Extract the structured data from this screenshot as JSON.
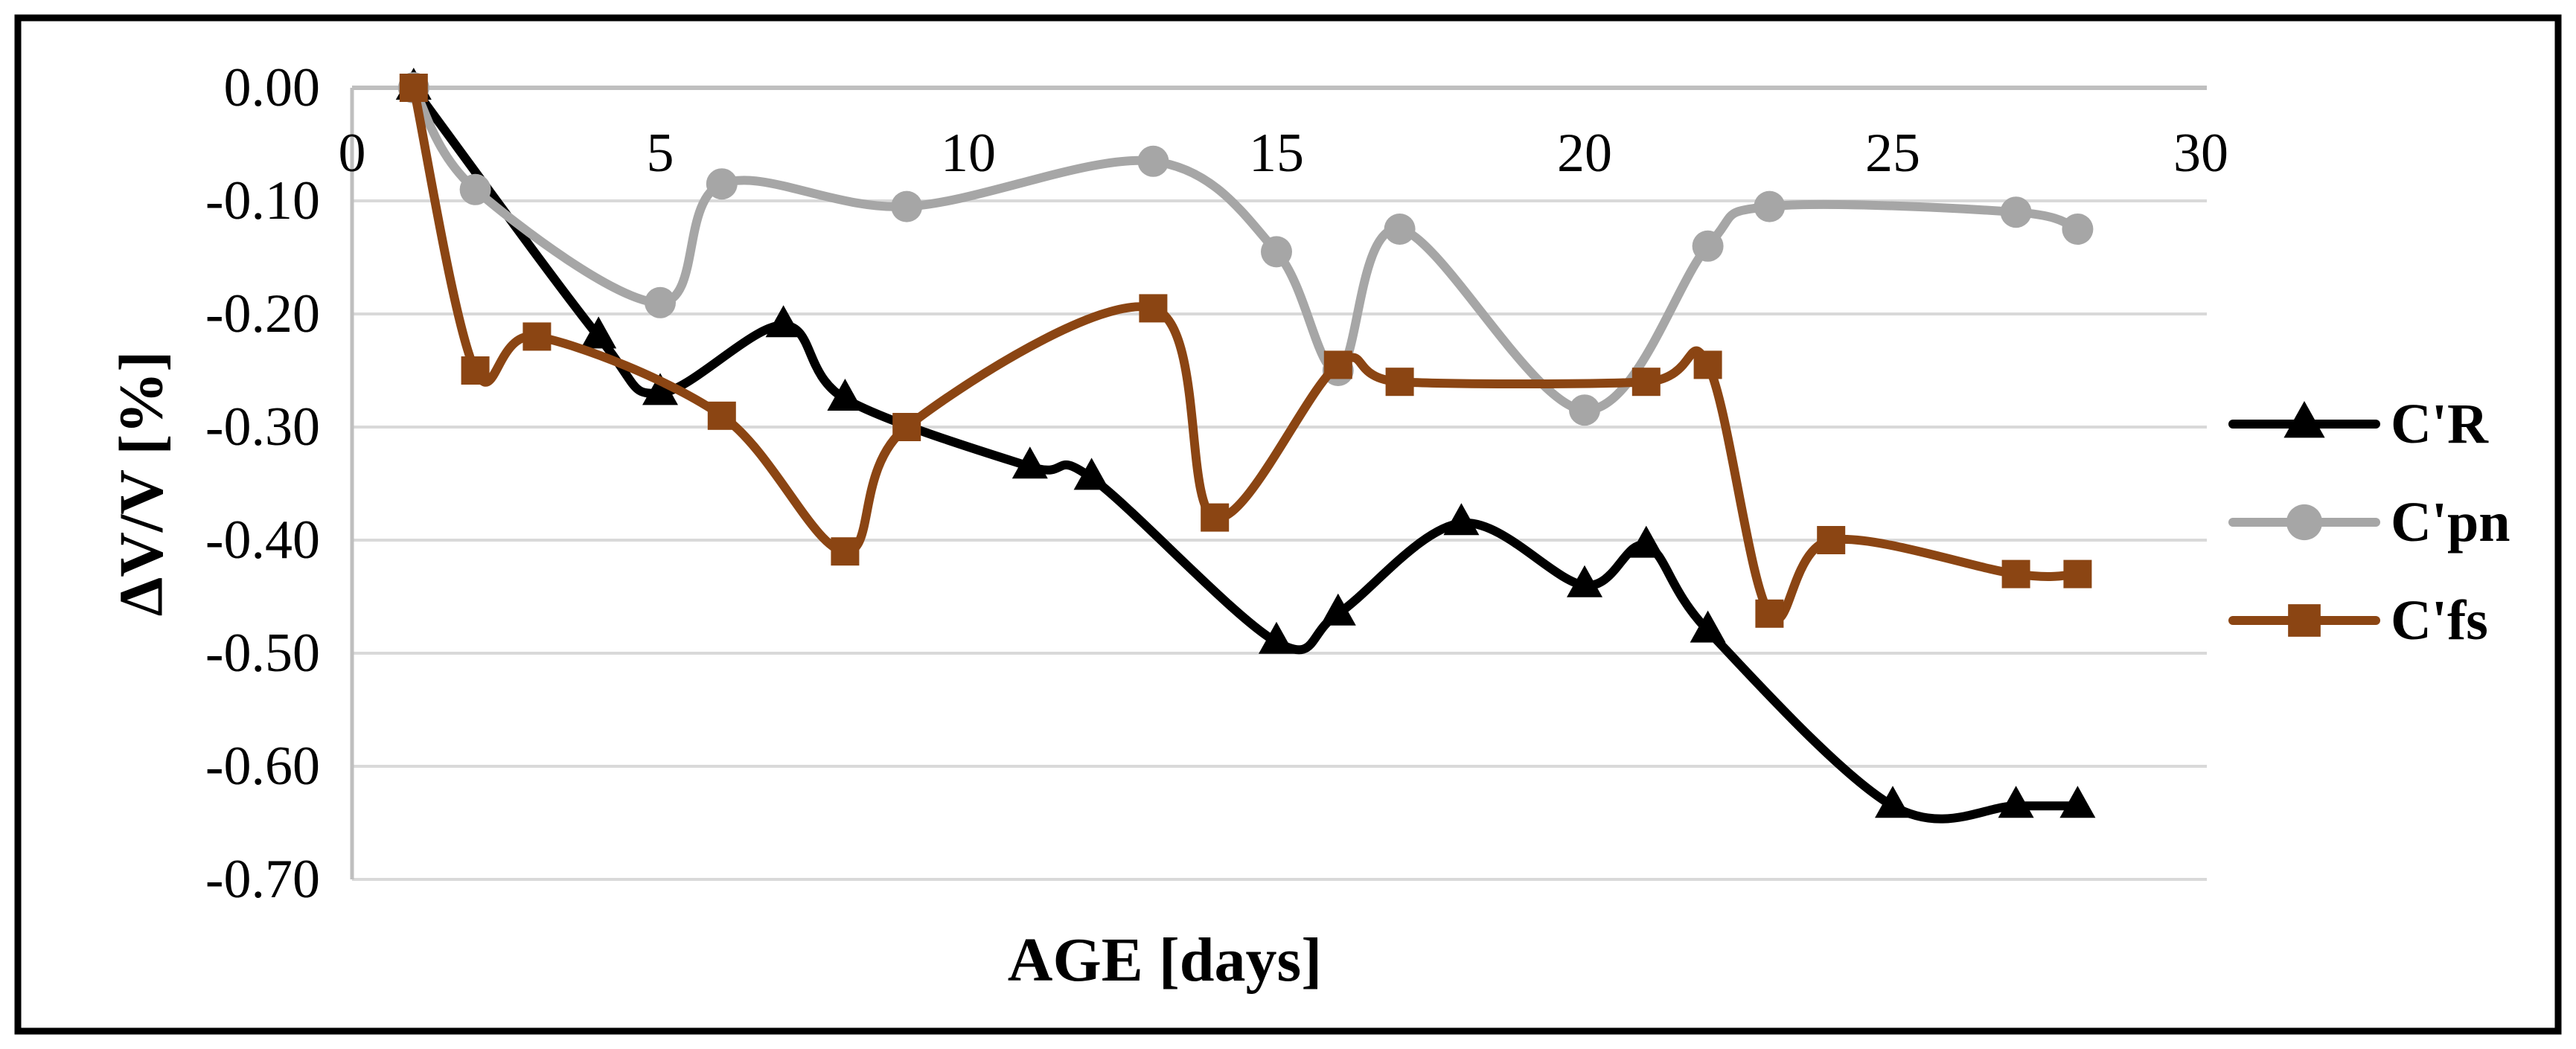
{
  "figure": {
    "border_color": "#000000",
    "background_color": "#ffffff",
    "grid_color": "#d9d9d9",
    "axis_color": "#bfbfbf",
    "text_color": "#000000"
  },
  "chart_data": {
    "type": "line",
    "title": "",
    "xlabel": "AGE [days]",
    "ylabel": "ΔV/V [%]",
    "xlim": [
      0,
      30
    ],
    "ylim": [
      -0.7,
      0.0
    ],
    "x_ticks": [
      0,
      5,
      10,
      15,
      20,
      25,
      30
    ],
    "y_ticks": [
      0.0,
      -0.1,
      -0.2,
      -0.3,
      -0.4,
      -0.5,
      -0.6,
      -0.7
    ],
    "y_tick_labels": [
      "0.00",
      "-0.10",
      "-0.20",
      "-0.30",
      "-0.40",
      "-0.50",
      "-0.60",
      "-0.70"
    ],
    "grid": true,
    "line_style": "smooth",
    "legend_position": "right",
    "series": [
      {
        "name": "C'R",
        "marker": "triangle",
        "color": "#000000",
        "x": [
          1,
          4,
          5,
          7,
          8,
          11,
          12,
          15,
          16,
          18,
          20,
          21,
          22,
          25,
          27,
          28
        ],
        "values": [
          0.0,
          -0.22,
          -0.27,
          -0.21,
          -0.275,
          -0.335,
          -0.345,
          -0.49,
          -0.465,
          -0.385,
          -0.44,
          -0.405,
          -0.48,
          -0.635,
          -0.635,
          -0.635
        ]
      },
      {
        "name": "C'pn",
        "marker": "circle",
        "color": "#a6a6a6",
        "x": [
          1,
          2,
          5,
          6,
          9,
          13,
          15,
          16,
          17,
          20,
          22,
          23,
          27,
          28
        ],
        "values": [
          0.0,
          -0.09,
          -0.19,
          -0.085,
          -0.105,
          -0.065,
          -0.145,
          -0.25,
          -0.125,
          -0.285,
          -0.14,
          -0.105,
          -0.11,
          -0.125
        ]
      },
      {
        "name": "C'fs",
        "marker": "square",
        "color": "#8b4513",
        "x": [
          1,
          2,
          3,
          6,
          8,
          9,
          13,
          14,
          16,
          17,
          21,
          22,
          23,
          24,
          27,
          28
        ],
        "values": [
          0.0,
          -0.25,
          -0.22,
          -0.29,
          -0.41,
          -0.3,
          -0.195,
          -0.38,
          -0.245,
          -0.26,
          -0.26,
          -0.245,
          -0.465,
          -0.4,
          -0.43,
          -0.43
        ]
      }
    ]
  }
}
